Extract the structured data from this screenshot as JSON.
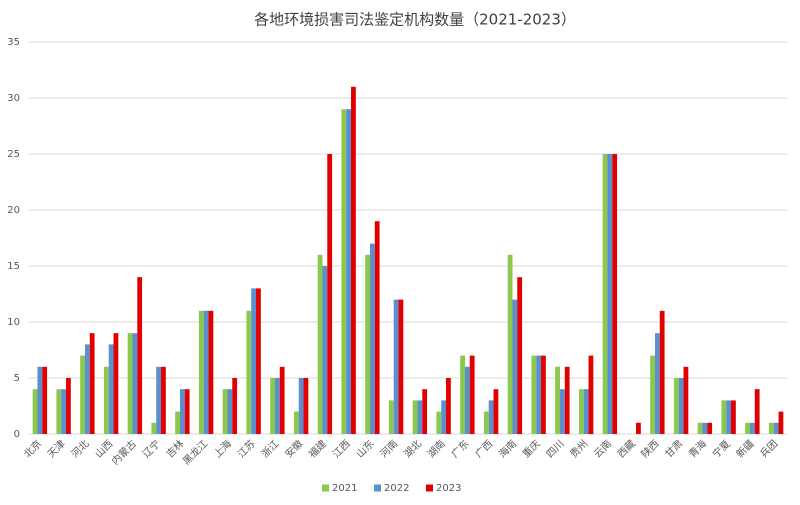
{
  "chart_data": {
    "type": "bar",
    "title": "各地环境损害司法鉴定机构数量（2021-2023）",
    "categories": [
      "北京",
      "天津",
      "河北",
      "山西",
      "内蒙古",
      "辽宁",
      "吉林",
      "黑龙江",
      "上海",
      "江苏",
      "浙江",
      "安徽",
      "福建",
      "江西",
      "山东",
      "河南",
      "湖北",
      "湖南",
      "广东",
      "广西",
      "海南",
      "重庆",
      "四川",
      "贵州",
      "云南",
      "西藏",
      "陕西",
      "甘肃",
      "青海",
      "宁夏",
      "新疆",
      "兵团"
    ],
    "series": [
      {
        "name": "2021",
        "color": "#8cc84b",
        "values": [
          4,
          4,
          7,
          6,
          9,
          1,
          2,
          11,
          4,
          11,
          5,
          2,
          16,
          29,
          16,
          3,
          3,
          2,
          7,
          2,
          16,
          7,
          6,
          4,
          25,
          0,
          7,
          5,
          1,
          3,
          1,
          1
        ]
      },
      {
        "name": "2022",
        "color": "#5b8fd0",
        "values": [
          6,
          4,
          8,
          8,
          9,
          6,
          4,
          11,
          4,
          13,
          5,
          5,
          15,
          29,
          17,
          12,
          3,
          3,
          6,
          3,
          12,
          7,
          4,
          4,
          25,
          0,
          9,
          5,
          1,
          3,
          1,
          1
        ]
      },
      {
        "name": "2023",
        "color": "#e00000",
        "values": [
          6,
          5,
          9,
          9,
          14,
          6,
          4,
          11,
          5,
          13,
          6,
          5,
          25,
          31,
          19,
          12,
          4,
          5,
          7,
          4,
          14,
          7,
          6,
          7,
          25,
          1,
          11,
          6,
          1,
          3,
          4,
          2
        ]
      }
    ],
    "ylim": [
      0,
      35
    ],
    "yticks": [
      0,
      5,
      10,
      15,
      20,
      25,
      30,
      35
    ],
    "grid": true,
    "legend": "bottom"
  }
}
